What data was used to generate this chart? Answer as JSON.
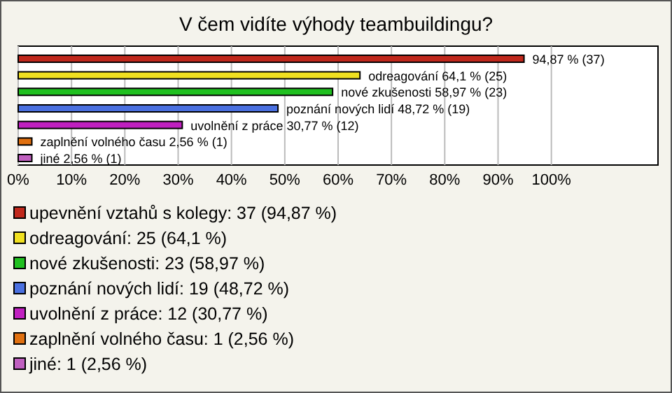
{
  "chart_data": {
    "type": "bar",
    "orientation": "horizontal",
    "stacked": true,
    "title": "V čem vidíte výhody teambuildingu?",
    "categories": [
      null,
      null,
      null,
      null,
      null,
      null,
      null
    ],
    "series": [
      {
        "name": "upevnění vztahů s kolegy: 37 (94,87 %)",
        "color": "#c0281c",
        "values": [
          94.87,
          null,
          null,
          null,
          null,
          null,
          null
        ],
        "value_labels": [
          "94,87 % (37)",
          null,
          null,
          null,
          null,
          null,
          null
        ]
      },
      {
        "name": "odreagování: 25 (64,1 %)",
        "color": "#f0e020",
        "values": [
          null,
          64.1,
          null,
          null,
          null,
          null,
          null
        ],
        "value_labels": [
          null,
          "odreagování 64,1 % (25)",
          null,
          null,
          null,
          null,
          null
        ]
      },
      {
        "name": "nové zkušenosti: 23 (58,97 %)",
        "color": "#20c020",
        "values": [
          null,
          null,
          58.97,
          null,
          null,
          null,
          null
        ],
        "value_labels": [
          null,
          null,
          "nové zkušenosti 58,97 % (23)",
          null,
          null,
          null,
          null
        ]
      },
      {
        "name": "poznání nových lidí: 19 (48,72 %)",
        "color": "#4a70e0",
        "values": [
          null,
          null,
          null,
          48.72,
          null,
          null,
          null
        ],
        "value_labels": [
          null,
          null,
          null,
          "poznání nových lidí 48,72 % (19)",
          null,
          null,
          null
        ]
      },
      {
        "name": "uvolnění z práce: 12 (30,77 %)",
        "color": "#c020c0",
        "values": [
          null,
          null,
          null,
          null,
          30.77,
          null,
          null
        ],
        "value_labels": [
          null,
          null,
          null,
          null,
          "uvolnění z práce 30,77 % (12)",
          null,
          null
        ]
      },
      {
        "name": "zaplnění volného času: 1 (2,56 %)",
        "color": "#e07010",
        "values": [
          null,
          null,
          null,
          null,
          null,
          2.56,
          null
        ],
        "value_labels": [
          null,
          null,
          null,
          null,
          null,
          "zaplnění volného času 2,56 % (1)",
          null
        ]
      },
      {
        "name": "jiné: 1 (2,56 %)",
        "color": "#c060c0",
        "values": [
          null,
          null,
          null,
          null,
          null,
          null,
          2.56
        ],
        "value_labels": [
          null,
          null,
          null,
          null,
          null,
          null,
          "jiné 2,56 % (1)"
        ]
      }
    ],
    "xlim": [
      0,
      120
    ],
    "xticks": [
      {
        "value": 0,
        "label": "0%"
      },
      {
        "value": 10,
        "label": "10%"
      },
      {
        "value": 20,
        "label": "20%"
      },
      {
        "value": 30,
        "label": "30%"
      },
      {
        "value": 40,
        "label": "40%"
      },
      {
        "value": 50,
        "label": "50%"
      },
      {
        "value": 60,
        "label": "60%"
      },
      {
        "value": 70,
        "label": "70%"
      },
      {
        "value": 80,
        "label": "80%"
      },
      {
        "value": 90,
        "label": "90%"
      },
      {
        "value": 100,
        "label": "100%"
      }
    ],
    "grid": "x",
    "legend": "bottom",
    "tick_labels": "x"
  }
}
